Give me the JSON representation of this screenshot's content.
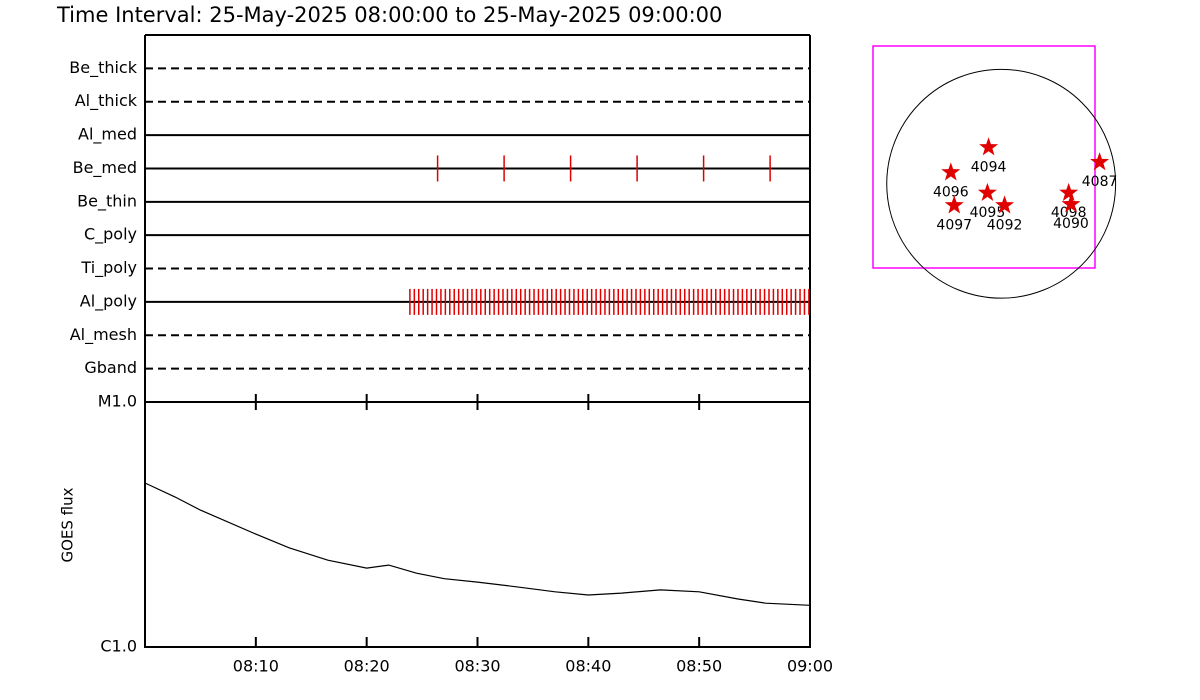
{
  "chart_data": [
    {
      "type": "timeline",
      "title": "Time Interval: 25-May-2025 08:00:00 to 25-May-2025 09:00:00",
      "xlim": [
        0,
        60
      ],
      "tick_color": "#e00000",
      "rows": [
        {
          "name": "Be_thick",
          "style": "dashed",
          "times": []
        },
        {
          "name": "Al_thick",
          "style": "dashed",
          "times": []
        },
        {
          "name": "Al_med",
          "style": "solid",
          "times": []
        },
        {
          "name": "Be_med",
          "style": "solid",
          "times": [
            26.4,
            32.4,
            38.4,
            44.4,
            50.4,
            56.4
          ]
        },
        {
          "name": "Be_thin",
          "style": "solid",
          "times": []
        },
        {
          "name": "C_poly",
          "style": "solid",
          "times": []
        },
        {
          "name": "Ti_poly",
          "style": "dashed",
          "times": []
        },
        {
          "name": "Al_poly",
          "style": "solid",
          "times": [
            23.9,
            24.3,
            24.7,
            25.1,
            25.5,
            25.9,
            26.3,
            26.7,
            27.1,
            27.5,
            27.9,
            28.3,
            28.7,
            29.1,
            29.5,
            29.9,
            30.3,
            30.7,
            31.1,
            31.5,
            31.9,
            32.3,
            32.7,
            33.1,
            33.5,
            33.9,
            34.3,
            34.7,
            35.1,
            35.5,
            35.9,
            36.3,
            36.7,
            37.1,
            37.5,
            37.9,
            38.3,
            38.7,
            39.1,
            39.5,
            39.9,
            40.3,
            40.7,
            41.1,
            41.5,
            41.9,
            42.3,
            42.7,
            43.1,
            43.5,
            43.9,
            44.3,
            44.7,
            45.1,
            45.5,
            45.9,
            46.3,
            46.7,
            47.1,
            47.5,
            47.9,
            48.3,
            48.7,
            49.1,
            49.5,
            49.9,
            50.3,
            50.7,
            51.1,
            51.5,
            51.9,
            52.3,
            52.7,
            53.1,
            53.5,
            53.9,
            54.3,
            54.7,
            55.1,
            55.5,
            55.9,
            56.3,
            56.7,
            57.1,
            57.5,
            57.9,
            58.3,
            58.7,
            59.1,
            59.5,
            59.9
          ]
        },
        {
          "name": "Al_mesh",
          "style": "dashed",
          "times": []
        },
        {
          "name": "Gband",
          "style": "dashed",
          "times": []
        }
      ]
    },
    {
      "type": "line",
      "y_label": "GOES flux",
      "log_y": true,
      "color": "#000000",
      "xlim": [
        0,
        60
      ],
      "xticks": [
        {
          "value": 10,
          "label": "08:10"
        },
        {
          "value": 20,
          "label": "08:20"
        },
        {
          "value": 30,
          "label": "08:30"
        },
        {
          "value": 40,
          "label": "08:40"
        },
        {
          "value": 50,
          "label": "08:50"
        },
        {
          "value": 60,
          "label": "09:00"
        }
      ],
      "ylim": [
        1e-06,
        1e-05
      ],
      "yticks": [
        {
          "value": 1e-06,
          "label": "C1.0"
        },
        {
          "value": 1e-05,
          "label": "M1.0"
        }
      ],
      "x": [
        0,
        2.7,
        5,
        10,
        13,
        16.5,
        20,
        22,
        24.5,
        27,
        30,
        33.5,
        37,
        40,
        43,
        46.5,
        50,
        53.5,
        56,
        60
      ],
      "values": [
        4.67e-06,
        4.1e-06,
        3.62e-06,
        2.89e-06,
        2.54e-06,
        2.26e-06,
        2.1e-06,
        2.16e-06,
        2e-06,
        1.9e-06,
        1.84e-06,
        1.76e-06,
        1.68e-06,
        1.63e-06,
        1.66e-06,
        1.71e-06,
        1.68e-06,
        1.57e-06,
        1.51e-06,
        1.48e-06
      ]
    },
    {
      "type": "map",
      "box_color": "#ff00ff",
      "star_color": "#e00000",
      "xlim": [
        -1.12,
        0.82
      ],
      "ylim": [
        -0.74,
        1.21
      ],
      "regions": [
        {
          "label": "4094",
          "x": -0.11,
          "y": 0.32
        },
        {
          "label": "4096",
          "x": -0.44,
          "y": 0.1
        },
        {
          "label": "4095",
          "x": -0.12,
          "y": -0.08
        },
        {
          "label": "4097",
          "x": -0.41,
          "y": -0.19
        },
        {
          "label": "4092",
          "x": 0.03,
          "y": -0.19
        },
        {
          "label": "4098",
          "x": 0.59,
          "y": -0.08
        },
        {
          "label": "4090",
          "x": 0.61,
          "y": -0.18
        },
        {
          "label": "4087",
          "x": 0.86,
          "y": 0.19
        }
      ]
    }
  ]
}
